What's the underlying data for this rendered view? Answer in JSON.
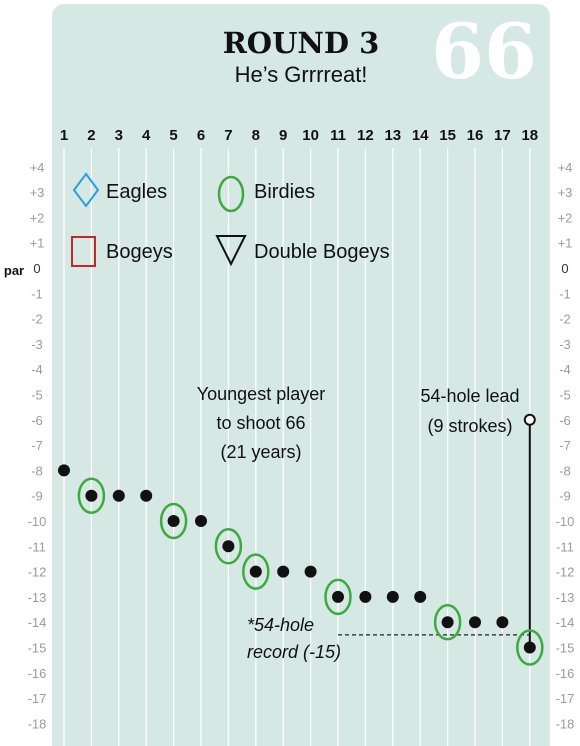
{
  "title": "ROUND 3",
  "subtitle": "He’s Grrrreat!",
  "round_score": "66",
  "par_label": "par",
  "legend": {
    "eagles": "Eagles",
    "birdies": "Birdies",
    "bogeys": "Bogeys",
    "double_bogeys": "Double Bogeys"
  },
  "annotations": {
    "youngest_line1": "Youngest player",
    "youngest_line2": "to shoot 66",
    "youngest_line3": "(21 years)",
    "lead_line1": "54-hole lead",
    "lead_line2": "(9 strokes)",
    "record_line1": "*54-hole",
    "record_line2": "record (-15)"
  },
  "colors": {
    "background": "#d5e8e4",
    "birdie": "#3daa3d",
    "eagle": "#2aa0d8",
    "bogey": "#c0282e",
    "dot": "#111111",
    "tick": "#9b9b9b"
  },
  "chart_data": {
    "type": "scatter",
    "x": [
      1,
      2,
      3,
      4,
      5,
      6,
      7,
      8,
      9,
      10,
      11,
      12,
      13,
      14,
      15,
      16,
      17,
      18
    ],
    "x_tick_labels": [
      "1",
      "2",
      "3",
      "4",
      "5",
      "6",
      "7",
      "8",
      "9",
      "10",
      "11",
      "12",
      "13",
      "14",
      "15",
      "16",
      "17",
      "18"
    ],
    "y_tick_labels": [
      "+4",
      "+3",
      "+2",
      "+1",
      "0",
      "-1",
      "-2",
      "-3",
      "-4",
      "-5",
      "-6",
      "-7",
      "-8",
      "-9",
      "-10",
      "-11",
      "-12",
      "-13",
      "-14",
      "-15",
      "-16",
      "-17",
      "-18"
    ],
    "ylim": [
      -18,
      4
    ],
    "series": [
      {
        "values": [
          -8,
          -9,
          -9,
          -9,
          -10,
          -10,
          -11,
          -12,
          -12,
          -12,
          -13,
          -13,
          -13,
          -13,
          -14,
          -14,
          -14,
          -15
        ],
        "result": [
          "par",
          "birdie",
          "par",
          "par",
          "birdie",
          "par",
          "birdie",
          "birdie",
          "par",
          "par",
          "birdie",
          "par",
          "par",
          "par",
          "birdie",
          "par",
          "par",
          "birdie"
        ]
      }
    ],
    "lead_marker": {
      "hole": 18,
      "from": -15,
      "to": -6
    },
    "record_line": {
      "value": -14.5,
      "from_hole": 11,
      "to_hole": 18
    },
    "grid": true
  }
}
